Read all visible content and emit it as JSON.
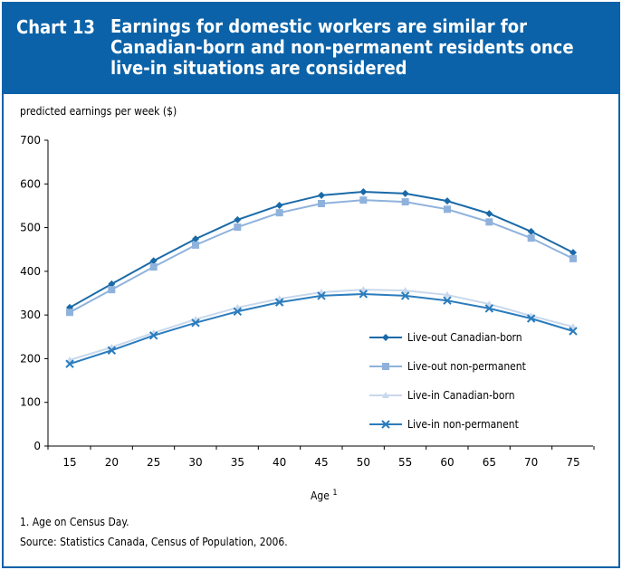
{
  "header": {
    "number": "Chart 13",
    "title": "Earnings for domestic workers are similar for Canadian-born and non-permanent residents once live-in situations are considered"
  },
  "footnotes": [
    "1. Age on Census Day.",
    "Source: Statistics Canada, Census of Population, 2006."
  ],
  "colors": {
    "header": "#0b62a8",
    "liveout_cb": "#1a6aa8",
    "liveout_np": "#8fb2dc",
    "livein_cb": "#c8d8ec",
    "livein_np": "#2b7cbd"
  },
  "chart_data": {
    "type": "line",
    "title": "",
    "ylabel": "predicted earnings per week ($)",
    "xlabel": "Age",
    "xlabel_sup": "1",
    "ylim": [
      0,
      700
    ],
    "yticks": [
      0,
      100,
      200,
      300,
      400,
      500,
      600,
      700
    ],
    "x": [
      15,
      20,
      25,
      30,
      35,
      40,
      45,
      50,
      55,
      60,
      65,
      70,
      75
    ],
    "grid": false,
    "legend": "bottom-right",
    "series": [
      {
        "name": "Live-out Canadian-born",
        "marker": "diamond",
        "values": [
          317,
          371,
          424,
          474,
          518,
          551,
          574,
          582,
          578,
          561,
          532,
          491,
          443
        ]
      },
      {
        "name": "Live-out non-permanent",
        "marker": "square",
        "values": [
          306,
          358,
          410,
          460,
          501,
          534,
          555,
          563,
          559,
          542,
          513,
          476,
          429
        ]
      },
      {
        "name": "Live-in Canadian-born",
        "marker": "triangle",
        "values": [
          197,
          226,
          259,
          290,
          317,
          337,
          352,
          358,
          356,
          346,
          325,
          298,
          273
        ]
      },
      {
        "name": "Live-in non-permanent",
        "marker": "x",
        "values": [
          188,
          219,
          253,
          282,
          308,
          329,
          344,
          348,
          344,
          333,
          315,
          292,
          263
        ]
      }
    ]
  }
}
